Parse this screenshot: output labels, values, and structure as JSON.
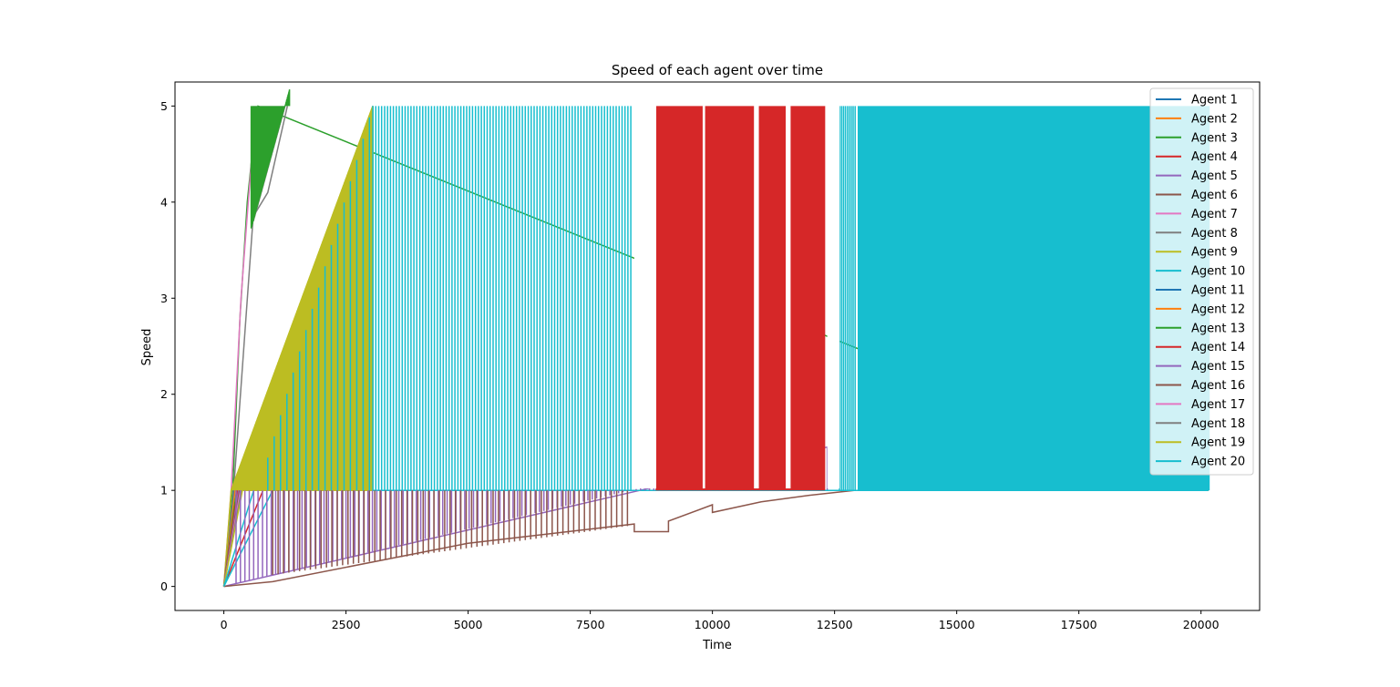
{
  "chart_data": {
    "type": "line",
    "title": "Speed of each agent over time",
    "xlabel": "Time",
    "ylabel": "Speed",
    "xlim": [
      -1000,
      21200
    ],
    "ylim": [
      -0.25,
      5.25
    ],
    "x_ticks": [
      0,
      2500,
      5000,
      7500,
      10000,
      12500,
      15000,
      17500,
      20000
    ],
    "y_ticks": [
      0,
      1,
      2,
      3,
      4,
      5
    ],
    "grid": false,
    "legend_position": "top-right",
    "series": [
      {
        "name": "Agent 1",
        "color": "#1f77b4",
        "points": [
          [
            0,
            0
          ],
          [
            200,
            1
          ],
          [
            20150,
            1
          ]
        ]
      },
      {
        "name": "Agent 2",
        "color": "#ff7f0e",
        "points": [
          [
            0,
            0
          ],
          [
            190,
            1
          ],
          [
            20150,
            1
          ]
        ]
      },
      {
        "name": "Agent 3",
        "color": "#2ca02c",
        "points": [
          [
            0,
            0
          ],
          [
            180,
            1
          ],
          [
            330,
            2.8
          ],
          [
            480,
            4
          ],
          [
            620,
            4.7
          ],
          [
            700,
            5
          ],
          [
            20150,
            1
          ]
        ]
      },
      {
        "name": "Agent 4",
        "color": "#d62728",
        "points": [
          [
            0,
            0
          ],
          [
            800,
            1
          ],
          [
            12300,
            1
          ]
        ]
      },
      {
        "name": "Agent 5",
        "color": "#9467bd",
        "points": [
          [
            0,
            0
          ],
          [
            12350,
            1.45
          ],
          [
            12350,
            1
          ],
          [
            12900,
            1
          ]
        ]
      },
      {
        "name": "Agent 6",
        "color": "#8c564b",
        "points": [
          [
            0,
            0
          ],
          [
            1000,
            0.05
          ],
          [
            5000,
            0.45
          ],
          [
            8400,
            0.65
          ],
          [
            8400,
            0.57
          ],
          [
            9100,
            0.57
          ],
          [
            9100,
            0.68
          ],
          [
            10000,
            0.85
          ],
          [
            10000,
            0.77
          ],
          [
            11000,
            0.88
          ],
          [
            12000,
            0.95
          ],
          [
            12900,
            1
          ]
        ]
      },
      {
        "name": "Agent 7",
        "color": "#e377c2",
        "points": [
          [
            0,
            0
          ],
          [
            150,
            1
          ],
          [
            350,
            3
          ],
          [
            500,
            4
          ],
          [
            630,
            4.85
          ]
        ]
      },
      {
        "name": "Agent 8",
        "color": "#7f7f7f",
        "points": [
          [
            0,
            0
          ],
          [
            200,
            1
          ],
          [
            600,
            3.85
          ],
          [
            900,
            4.1
          ],
          [
            1300,
            5
          ]
        ]
      },
      {
        "name": "Agent 9",
        "color": "#bcbd22",
        "points": [
          [
            0,
            0
          ],
          [
            150,
            1
          ],
          [
            3050,
            5
          ],
          [
            3050,
            1
          ]
        ]
      },
      {
        "name": "Agent 10",
        "color": "#17becf",
        "points": [
          [
            0,
            0
          ],
          [
            1000,
            1
          ],
          [
            20150,
            1
          ]
        ]
      },
      {
        "name": "Agent 11",
        "color": "#1f77b4",
        "points": [
          [
            0,
            0
          ],
          [
            220,
            1
          ],
          [
            20150,
            1
          ]
        ]
      },
      {
        "name": "Agent 12",
        "color": "#ff7f0e",
        "points": [
          [
            0,
            0
          ],
          [
            230,
            1
          ],
          [
            20150,
            1
          ]
        ]
      },
      {
        "name": "Agent 13",
        "color": "#2ca02c",
        "points": [
          [
            0,
            0
          ],
          [
            260,
            1
          ],
          [
            20150,
            1
          ]
        ]
      },
      {
        "name": "Agent 14",
        "color": "#d62728",
        "points": [
          [
            0,
            0
          ],
          [
            280,
            1
          ],
          [
            20150,
            1
          ]
        ]
      },
      {
        "name": "Agent 15",
        "color": "#9467bd",
        "points": [
          [
            0,
            0
          ],
          [
            300,
            1
          ],
          [
            20150,
            1
          ]
        ]
      },
      {
        "name": "Agent 16",
        "color": "#8c564b",
        "points": [
          [
            0,
            0
          ],
          [
            320,
            1
          ],
          [
            20150,
            1
          ]
        ]
      },
      {
        "name": "Agent 17",
        "color": "#e377c2",
        "points": [
          [
            0,
            0
          ],
          [
            340,
            1
          ],
          [
            20150,
            1
          ]
        ]
      },
      {
        "name": "Agent 18",
        "color": "#7f7f7f",
        "points": [
          [
            0,
            0
          ],
          [
            360,
            1
          ],
          [
            20150,
            1
          ]
        ]
      },
      {
        "name": "Agent 19",
        "color": "#bcbd22",
        "points": [
          [
            0,
            0
          ],
          [
            380,
            1
          ],
          [
            20150,
            1
          ]
        ]
      },
      {
        "name": "Agent 20",
        "color": "#17becf",
        "points": [
          [
            0,
            0
          ],
          [
            3050,
            5
          ],
          [
            3050,
            1
          ],
          [
            20150,
            1
          ]
        ]
      }
    ]
  }
}
